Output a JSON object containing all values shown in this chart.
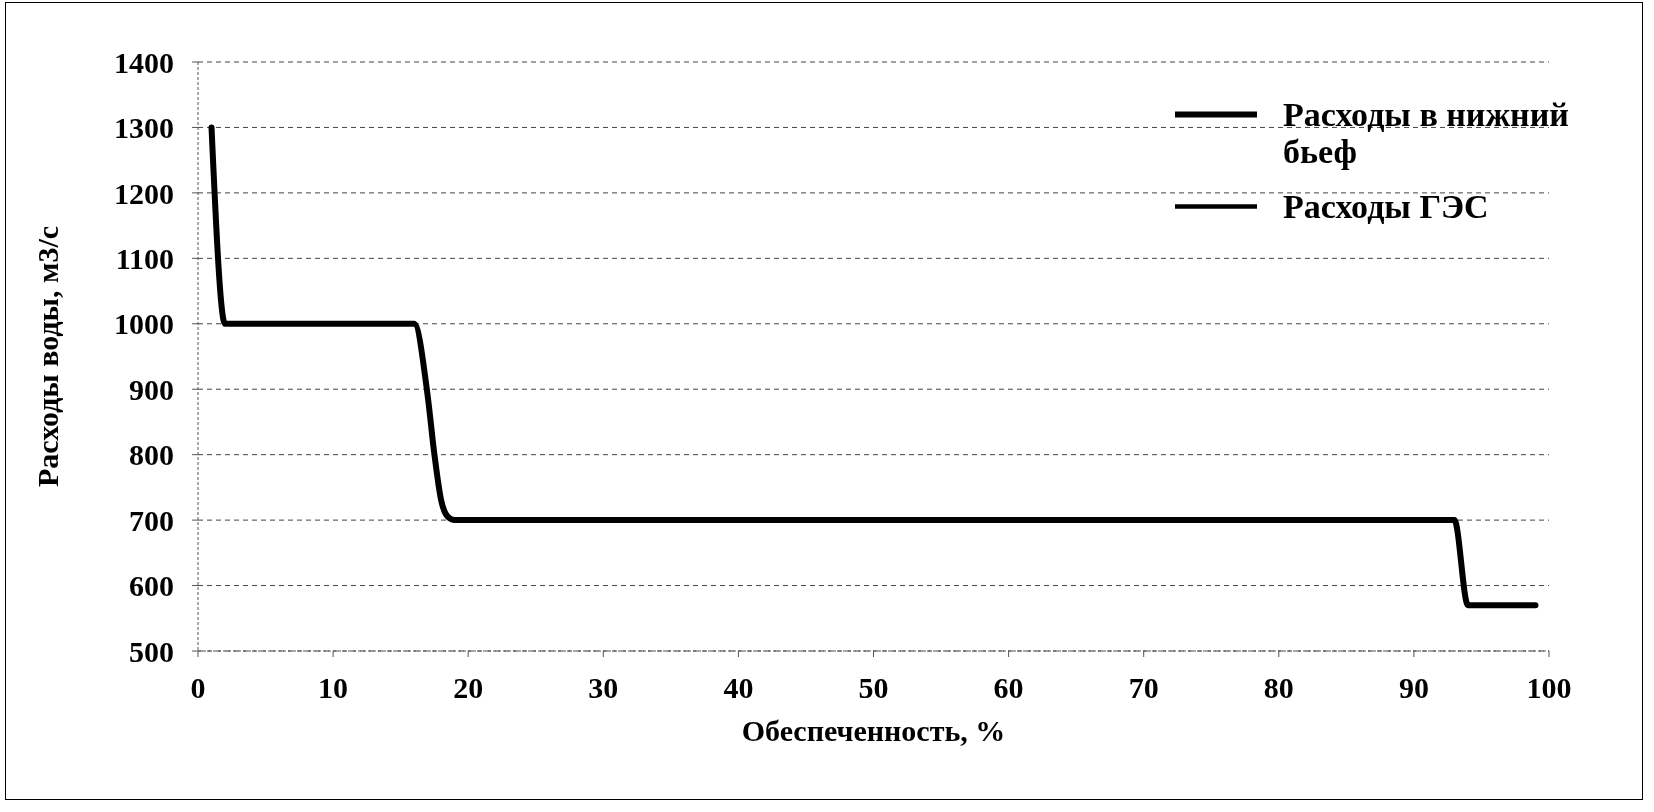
{
  "chart_data": {
    "type": "line",
    "xlabel": "Обеспеченность, %",
    "ylabel": "Расходы воды, м3/с",
    "x": [
      1,
      2,
      3,
      10,
      16,
      17,
      17.5,
      18,
      18.5,
      19,
      20,
      50,
      93,
      94,
      95,
      99
    ],
    "series": [
      {
        "name": "Расходы в нижний бьеф",
        "color": "#000000",
        "values": [
          1300,
          1000,
          1000,
          1000,
          1000,
          890,
          800,
          730,
          705,
          700,
          700,
          700,
          700,
          570,
          570,
          570
        ]
      },
      {
        "name": "Расходы ГЭС",
        "color": "#000000",
        "values": [
          null,
          null,
          null,
          null,
          null,
          null,
          null,
          null,
          null,
          null,
          null,
          null,
          null,
          null,
          null,
          null
        ]
      }
    ],
    "xlim": [
      0,
      100
    ],
    "xticks": [
      0,
      10,
      20,
      30,
      40,
      50,
      60,
      70,
      80,
      90,
      100
    ],
    "ylim": [
      500,
      1400
    ],
    "yticks": [
      500,
      600,
      700,
      800,
      900,
      1000,
      1100,
      1200,
      1300,
      1400
    ],
    "grid": "y",
    "legend": "top right",
    "marker": "none",
    "line_style": "solid"
  }
}
